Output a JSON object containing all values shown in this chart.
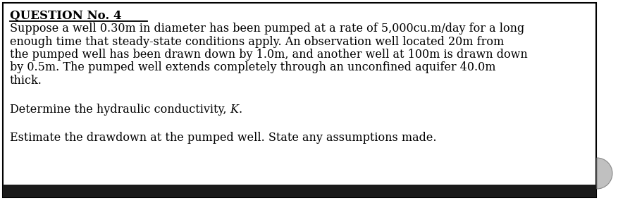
{
  "title": "QUESTION No. 4",
  "paragraph1_lines": [
    "Suppose a well 0.30m in diameter has been pumped at a rate of 5,000cu.m/day for a long",
    "enough time that steady-state conditions apply. An observation well located 20m from",
    "the pumped well has been drawn down by 1.0m, and another well at 100m is drawn down",
    "by 0.5m. The pumped well extends completely through an unconfined aquifer 40.0m",
    "thick."
  ],
  "paragraph2_plain": "Determine the hydraulic conductivity, ",
  "paragraph2_italic": "K",
  "paragraph2_end": ".",
  "paragraph3": "Estimate the drawdown at the pumped well. State any assumptions made.",
  "bg_color": "#ffffff",
  "border_color": "#000000",
  "text_color": "#000000",
  "bottom_bar_color": "#1a1a1a",
  "circle_color": "#c0c0c0",
  "title_fontsize": 12,
  "body_fontsize": 11.5,
  "fig_width": 8.94,
  "fig_height": 2.98,
  "dpi": 100
}
